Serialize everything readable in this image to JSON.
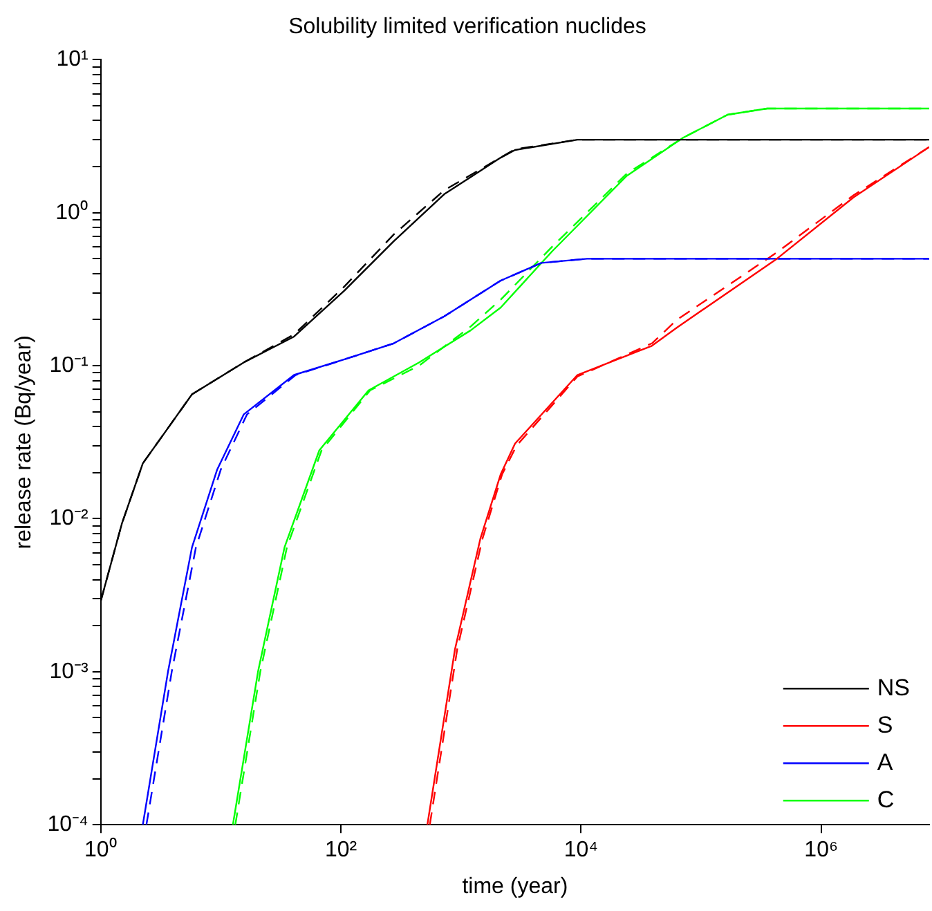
{
  "chart_data": {
    "type": "line",
    "title": "Solubility limited verification nuclides",
    "xlabel": "time (year)",
    "ylabel": "release rate (Bq/year)",
    "log": "xy",
    "grid": false,
    "legend": "bottom right",
    "marker": "none",
    "xlim": [
      1,
      7940000
    ],
    "ylim": [
      0.0001,
      10
    ],
    "xticks": [
      {
        "value": 1,
        "label": "10⁰"
      },
      {
        "value": 100,
        "label": "10²"
      },
      {
        "value": 10000,
        "label": "10⁴"
      },
      {
        "value": 1000000,
        "label": "10⁶"
      }
    ],
    "yticks": [
      {
        "value": 0.0001,
        "label": "10⁻⁴"
      },
      {
        "value": 0.0002,
        "label": null
      },
      {
        "value": 0.0003,
        "label": null
      },
      {
        "value": 0.0004,
        "label": null
      },
      {
        "value": 0.0005,
        "label": null
      },
      {
        "value": 0.0006,
        "label": null
      },
      {
        "value": 0.0007,
        "label": null
      },
      {
        "value": 0.0008,
        "label": null
      },
      {
        "value": 0.0009,
        "label": null
      },
      {
        "value": 0.001,
        "label": "10⁻³"
      },
      {
        "value": 0.002,
        "label": null
      },
      {
        "value": 0.003,
        "label": null
      },
      {
        "value": 0.004,
        "label": null
      },
      {
        "value": 0.005,
        "label": null
      },
      {
        "value": 0.006,
        "label": null
      },
      {
        "value": 0.007,
        "label": null
      },
      {
        "value": 0.008,
        "label": null
      },
      {
        "value": 0.009,
        "label": null
      },
      {
        "value": 0.01,
        "label": "10⁻²"
      },
      {
        "value": 0.02,
        "label": null
      },
      {
        "value": 0.03,
        "label": null
      },
      {
        "value": 0.04,
        "label": null
      },
      {
        "value": 0.05,
        "label": null
      },
      {
        "value": 0.06,
        "label": null
      },
      {
        "value": 0.07,
        "label": null
      },
      {
        "value": 0.08,
        "label": null
      },
      {
        "value": 0.09,
        "label": null
      },
      {
        "value": 0.1,
        "label": "10⁻¹"
      },
      {
        "value": 0.2,
        "label": null
      },
      {
        "value": 0.3,
        "label": null
      },
      {
        "value": 0.4,
        "label": null
      },
      {
        "value": 0.5,
        "label": null
      },
      {
        "value": 0.6,
        "label": null
      },
      {
        "value": 0.7,
        "label": null
      },
      {
        "value": 0.8,
        "label": null
      },
      {
        "value": 0.9,
        "label": null
      },
      {
        "value": 1,
        "label": "10⁰"
      },
      {
        "value": 2,
        "label": null
      },
      {
        "value": 3,
        "label": null
      },
      {
        "value": 4,
        "label": null
      },
      {
        "value": 5,
        "label": null
      },
      {
        "value": 6,
        "label": null
      },
      {
        "value": 7,
        "label": null
      },
      {
        "value": 8,
        "label": null
      },
      {
        "value": 9,
        "label": null
      },
      {
        "value": 10,
        "label": "10¹"
      }
    ],
    "series": [
      {
        "name": "NS",
        "color": "#000000",
        "line_style": "solid",
        "x": [
          1,
          1.5,
          2.24,
          5.75,
          15.5,
          40.7,
          107,
          275,
          724,
          2140,
          2820,
          9330,
          7940000
        ],
        "values": [
          0.0029,
          0.0093,
          0.023,
          0.065,
          0.105,
          0.155,
          0.31,
          0.65,
          1.32,
          2.29,
          2.57,
          3.0,
          3.0
        ]
      },
      {
        "name": "S",
        "color": "#ff0000",
        "line_style": "solid",
        "x": [
          525,
          891,
          1450,
          2140,
          2820,
          9330,
          38900,
          63100,
          427000,
          1860000,
          7940000
        ],
        "values": [
          0.0001,
          0.0014,
          0.0074,
          0.0195,
          0.031,
          0.087,
          0.135,
          0.178,
          0.5,
          1.26,
          2.69
        ]
      },
      {
        "name": "A",
        "color": "#0000ff",
        "line_style": "solid",
        "x": [
          2.24,
          3.63,
          5.75,
          9.33,
          15.5,
          40.7,
          107,
          275,
          724,
          2140,
          4680,
          11200,
          7940000
        ],
        "values": [
          0.0001,
          0.001,
          0.0065,
          0.021,
          0.048,
          0.087,
          0.11,
          0.14,
          0.21,
          0.36,
          0.47,
          0.5,
          0.5
        ]
      },
      {
        "name": "C",
        "color": "#00ff00",
        "line_style": "solid",
        "x": [
          12.6,
          20.4,
          33.9,
          66.1,
          170,
          447,
          1200,
          2140,
          5750,
          24000,
          70800,
          166000,
          355000,
          7940000
        ],
        "values": [
          0.0001,
          0.001,
          0.0065,
          0.028,
          0.069,
          0.105,
          0.17,
          0.24,
          0.56,
          1.74,
          3.09,
          4.37,
          4.8,
          4.8
        ]
      },
      {
        "color": "#000000",
        "line_style": "dashed",
        "x": [
          1,
          1.5,
          2.24,
          5.75,
          15.5,
          40.7,
          107,
          275,
          724,
          2820,
          9330,
          7940000
        ],
        "values": [
          0.0029,
          0.0093,
          0.023,
          0.065,
          0.105,
          0.16,
          0.33,
          0.72,
          1.4,
          2.6,
          3.0,
          3.0
        ]
      },
      {
        "color": "#ff0000",
        "line_style": "dashed",
        "x": [
          550,
          930,
          1510,
          2200,
          2900,
          9330,
          38900,
          63100,
          427000,
          1860000,
          7940000
        ],
        "values": [
          0.0001,
          0.0014,
          0.0074,
          0.0195,
          0.03,
          0.085,
          0.14,
          0.2,
          0.55,
          1.3,
          2.69
        ]
      },
      {
        "color": "#0000ff",
        "line_style": "dashed",
        "x": [
          2.4,
          3.9,
          6.2,
          10,
          16.5,
          42,
          107,
          275,
          724,
          2140,
          4680,
          11200,
          7940000
        ],
        "values": [
          0.0001,
          0.001,
          0.0065,
          0.021,
          0.048,
          0.087,
          0.11,
          0.14,
          0.21,
          0.36,
          0.47,
          0.5,
          0.5
        ]
      },
      {
        "color": "#00ff00",
        "line_style": "dashed",
        "x": [
          13.2,
          21.3,
          35.5,
          69,
          175,
          447,
          1200,
          2140,
          5750,
          24000,
          70800,
          166000,
          355000,
          7940000
        ],
        "values": [
          0.0001,
          0.001,
          0.0065,
          0.028,
          0.069,
          0.1,
          0.18,
          0.27,
          0.6,
          1.8,
          3.09,
          4.37,
          4.8,
          4.8
        ]
      }
    ]
  }
}
